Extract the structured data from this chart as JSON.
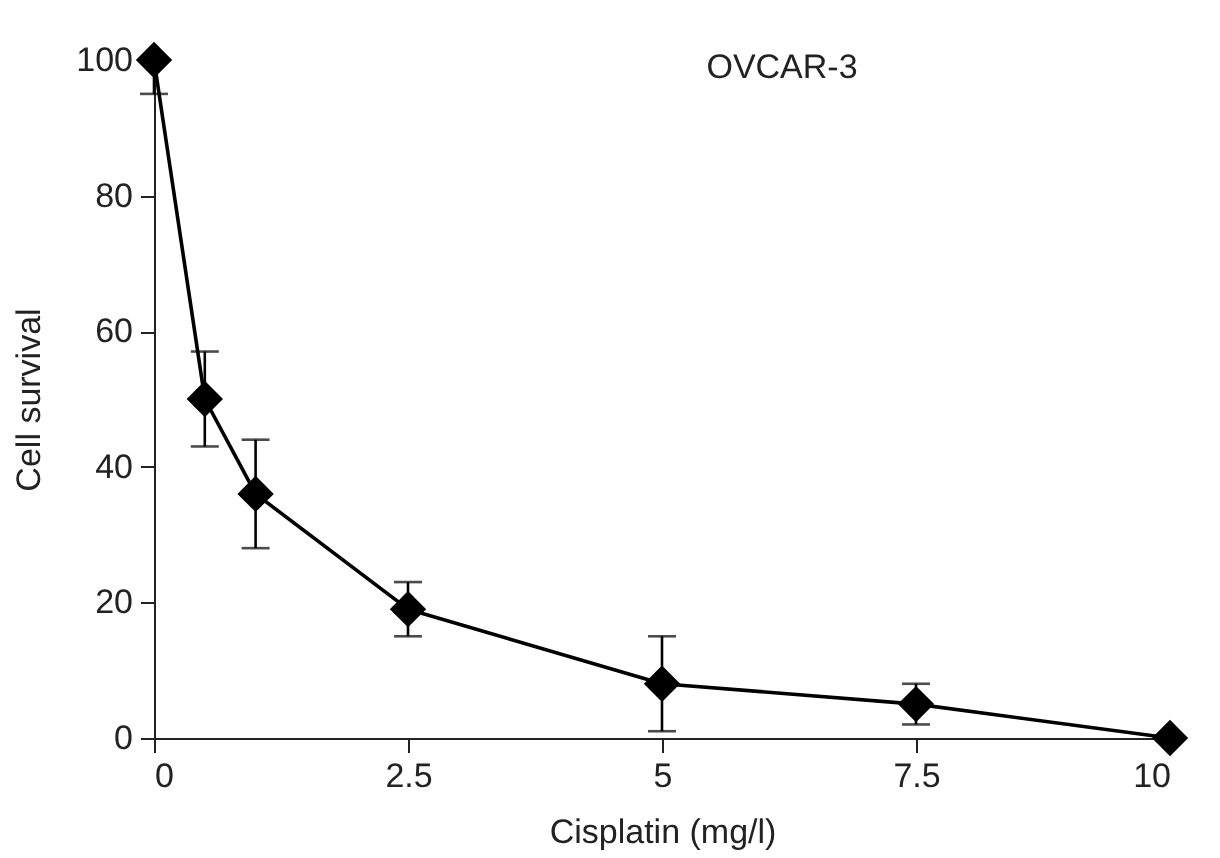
{
  "chart_data": {
    "type": "line",
    "title": "OVCAR-3",
    "xlabel": "Cisplatin (mg/l)",
    "ylabel": "Cell survival",
    "x": [
      0,
      0.5,
      1,
      2.5,
      5,
      7.5,
      10
    ],
    "series": [
      {
        "color": "#000000",
        "values": [
          100,
          50,
          36,
          19,
          8,
          5,
          0
        ],
        "errors": [
          [
            95,
            100
          ],
          [
            43,
            57
          ],
          [
            28,
            44
          ],
          [
            15,
            23
          ],
          [
            1,
            15
          ],
          [
            2,
            8
          ],
          null
        ]
      }
    ],
    "xlim": [
      0,
      10
    ],
    "xticks": [
      0,
      2.5,
      5,
      7.5,
      10
    ],
    "ylim": [
      0,
      100
    ],
    "yticks": [
      0,
      20,
      40,
      60,
      80,
      100
    ],
    "marker": "diamond",
    "line_style": "solid",
    "grid": false
  }
}
